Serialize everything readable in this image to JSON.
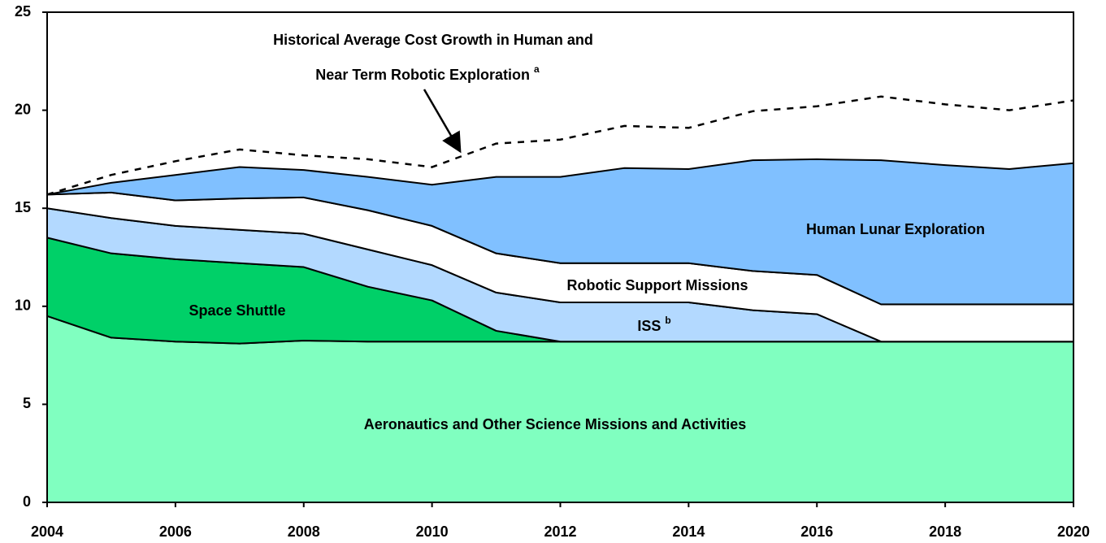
{
  "chart_data": {
    "type": "stacked_area",
    "x": [
      2004,
      2005,
      2006,
      2007,
      2008,
      2009,
      2010,
      2011,
      2012,
      2013,
      2014,
      2015,
      2016,
      2017,
      2018,
      2019,
      2020
    ],
    "series": [
      {
        "name": "Aeronautics and Other Science Missions and Activities",
        "color": "#80ffc0",
        "label_color": "#000000",
        "values": [
          9.5,
          8.4,
          8.2,
          8.1,
          8.25,
          8.2,
          8.2,
          8.2,
          8.2,
          8.2,
          8.2,
          8.2,
          8.2,
          8.2,
          8.2,
          8.2,
          8.2
        ]
      },
      {
        "name": "Space Shuttle",
        "color": "#00d068",
        "label_color": "#ffffff",
        "values": [
          4.0,
          4.3,
          4.2,
          4.1,
          3.75,
          2.8,
          2.1,
          0.55,
          0,
          0,
          0,
          0,
          0,
          0,
          0,
          0,
          0
        ]
      },
      {
        "name": "ISS",
        "note": "b",
        "color": "#b3d9ff",
        "label_color": "#000000",
        "values": [
          1.5,
          1.8,
          1.7,
          1.7,
          1.7,
          1.9,
          1.8,
          1.95,
          2.0,
          2.0,
          2.0,
          1.6,
          1.4,
          0,
          0,
          0,
          0
        ]
      },
      {
        "name": "Robotic Support Missions",
        "color": "#ffffff",
        "label_color": "#000000",
        "values": [
          0.7,
          1.3,
          1.3,
          1.6,
          1.85,
          2.0,
          2.0,
          2.0,
          2.0,
          2.0,
          2.0,
          2.0,
          2.0,
          1.9,
          1.9,
          1.9,
          1.9
        ]
      },
      {
        "name": "Human Lunar Exploration",
        "color": "#80c0ff",
        "label_color": "#000000",
        "values": [
          0,
          0.5,
          1.3,
          1.6,
          1.4,
          1.7,
          2.1,
          3.9,
          4.4,
          4.85,
          4.8,
          5.65,
          5.9,
          7.35,
          7.1,
          6.9,
          7.2
        ]
      }
    ],
    "line": {
      "color": "#000000",
      "dashed": true,
      "values": [
        15.7,
        16.7,
        17.4,
        18.0,
        17.7,
        17.5,
        17.1,
        18.3,
        18.5,
        19.2,
        19.1,
        19.95,
        20.2,
        20.7,
        20.3,
        20.0,
        20.5
      ]
    },
    "annotation": {
      "lines": [
        "Historical Average Cost Growth in Human and",
        "Near Term Robotic Exploration"
      ],
      "note": "a"
    },
    "xlim": [
      2004,
      2020
    ],
    "xticks": [
      2004,
      2006,
      2008,
      2010,
      2012,
      2014,
      2016,
      2018,
      2020
    ],
    "ylim": [
      0,
      25
    ],
    "yticks": [
      0,
      5,
      10,
      15,
      20,
      25
    ]
  }
}
